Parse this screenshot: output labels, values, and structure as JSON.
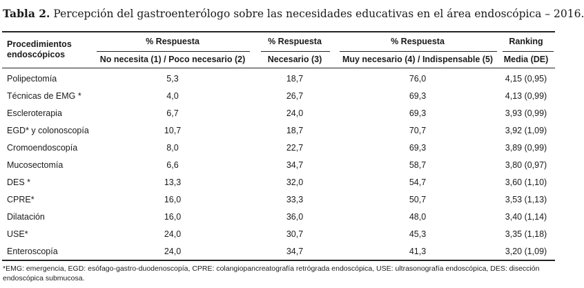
{
  "caption": {
    "label": "Tabla 2.",
    "text": "Percepción del gastroenterólogo sobre las necesidades educativas en el área endoscópica – 2016."
  },
  "header": {
    "procedures_line1": "Procedimientos",
    "procedures_line2": "endoscópicos",
    "group1_top": "% Respuesta",
    "group1_sub": "No necesita (1) / Poco necesario (2)",
    "group2_top": "% Respuesta",
    "group2_sub": "Necesario (3)",
    "group3_top": "% Respuesta",
    "group3_sub": "Muy necesario (4) / Indispensable (5)",
    "group4_top": "Ranking",
    "group4_sub": "Media (DE)"
  },
  "rows": [
    {
      "procedure": "Polipectomía",
      "no_necesita": "5,3",
      "necesario": "18,7",
      "muy_necesario": "76,0",
      "media": "4,15 (0,95)"
    },
    {
      "procedure": "Técnicas de EMG *",
      "no_necesita": "4,0",
      "necesario": "26,7",
      "muy_necesario": "69,3",
      "media": "4,13 (0,99)"
    },
    {
      "procedure": "Escleroterapia",
      "no_necesita": "6,7",
      "necesario": "24,0",
      "muy_necesario": "69,3",
      "media": "3,93 (0,99)"
    },
    {
      "procedure": "EGD* y colonoscopía",
      "no_necesita": "10,7",
      "necesario": "18,7",
      "muy_necesario": "70,7",
      "media": "3,92 (1,09)"
    },
    {
      "procedure": "Cromoendoscopía",
      "no_necesita": "8,0",
      "necesario": "22,7",
      "muy_necesario": "69,3",
      "media": "3,89 (0,99)"
    },
    {
      "procedure": "Mucosectomía",
      "no_necesita": "6,6",
      "necesario": "34,7",
      "muy_necesario": "58,7",
      "media": "3,80 (0,97)"
    },
    {
      "procedure": "DES *",
      "no_necesita": "13,3",
      "necesario": "32,0",
      "muy_necesario": "54,7",
      "media": "3,60 (1,10)"
    },
    {
      "procedure": "CPRE*",
      "no_necesita": "16,0",
      "necesario": "33,3",
      "muy_necesario": "50,7",
      "media": "3,53 (1,13)"
    },
    {
      "procedure": "Dilatación",
      "no_necesita": "16,0",
      "necesario": "36,0",
      "muy_necesario": "48,0",
      "media": "3,40 (1,14)"
    },
    {
      "procedure": "USE*",
      "no_necesita": "24,0",
      "necesario": "30,7",
      "muy_necesario": "45,3",
      "media": "3,35 (1,18)"
    },
    {
      "procedure": "Enteroscopía",
      "no_necesita": "24,0",
      "necesario": "34,7",
      "muy_necesario": "41,3",
      "media": "3,20 (1,09)"
    }
  ],
  "footnote": "*EMG: emergencia, EGD: esófago-gastro-duodenoscopía, CPRE: colangiopancreatografía retrógrada endoscópica, USE: ultrasonografía endoscópica, DES: disección endoscópica submucosa."
}
